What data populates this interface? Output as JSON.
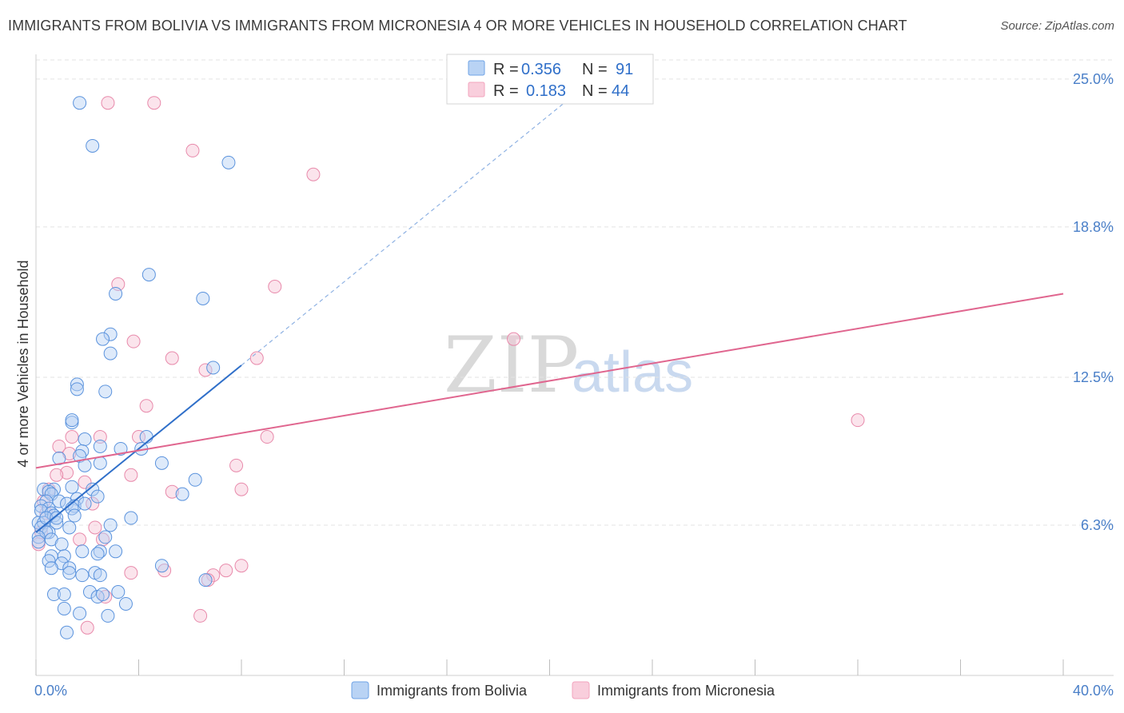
{
  "header": {
    "title": "IMMIGRANTS FROM BOLIVIA VS IMMIGRANTS FROM MICRONESIA 4 OR MORE VEHICLES IN HOUSEHOLD CORRELATION CHART",
    "source": "Source: ZipAtlas.com"
  },
  "watermark": {
    "zip": "ZIP",
    "atlas": "atlas"
  },
  "legend": {
    "r_label": "R =",
    "n_label": "N =",
    "bolivia_r": "0.356",
    "bolivia_n": "91",
    "micronesia_r": "0.183",
    "micronesia_n": "44"
  },
  "chart_data": {
    "type": "scatter",
    "title": "IMMIGRANTS FROM BOLIVIA VS IMMIGRANTS FROM MICRONESIA 4 OR MORE VEHICLES IN HOUSEHOLD CORRELATION CHART",
    "xlabel": "",
    "ylabel": "4 or more Vehicles in Household",
    "xlim": [
      0,
      40
    ],
    "ylim": [
      0,
      25.8
    ],
    "x_tick_labels": [
      "0.0%",
      "40.0%"
    ],
    "y_ticks": [
      6.3,
      12.5,
      18.8,
      25.0
    ],
    "y_tick_labels": [
      "6.3%",
      "12.5%",
      "18.8%",
      "25.0%"
    ],
    "grid": true,
    "legend_position": "top-center",
    "series": [
      {
        "name": "Immigrants from Bolivia",
        "color": "#6fa3e6",
        "r": 0.356,
        "n": 91,
        "trend": {
          "x0": 0.0,
          "y0": 6.0,
          "x1": 8.0,
          "y1": 13.0,
          "dashed_to_x": 21.0
        },
        "points": [
          [
            1.7,
            24.0
          ],
          [
            2.2,
            22.2
          ],
          [
            7.5,
            21.5
          ],
          [
            4.4,
            16.8
          ],
          [
            3.1,
            16.0
          ],
          [
            6.5,
            15.8
          ],
          [
            2.9,
            14.3
          ],
          [
            2.6,
            14.1
          ],
          [
            2.9,
            13.5
          ],
          [
            6.9,
            12.9
          ],
          [
            1.6,
            12.2
          ],
          [
            1.6,
            12.0
          ],
          [
            2.7,
            11.9
          ],
          [
            1.4,
            10.6
          ],
          [
            1.4,
            10.7
          ],
          [
            4.3,
            10.0
          ],
          [
            1.9,
            9.9
          ],
          [
            2.5,
            9.6
          ],
          [
            3.3,
            9.5
          ],
          [
            4.1,
            9.5
          ],
          [
            1.8,
            9.4
          ],
          [
            1.7,
            9.2
          ],
          [
            0.9,
            9.1
          ],
          [
            2.5,
            8.9
          ],
          [
            4.9,
            8.9
          ],
          [
            1.9,
            8.8
          ],
          [
            6.2,
            8.2
          ],
          [
            1.4,
            7.9
          ],
          [
            2.2,
            7.8
          ],
          [
            0.3,
            7.8
          ],
          [
            0.7,
            7.8
          ],
          [
            0.5,
            7.7
          ],
          [
            5.7,
            7.6
          ],
          [
            0.6,
            7.6
          ],
          [
            2.4,
            7.5
          ],
          [
            1.6,
            7.4
          ],
          [
            0.9,
            7.3
          ],
          [
            0.4,
            7.3
          ],
          [
            1.2,
            7.2
          ],
          [
            1.5,
            7.1
          ],
          [
            0.2,
            7.1
          ],
          [
            0.5,
            7.0
          ],
          [
            1.4,
            7.0
          ],
          [
            0.2,
            6.9
          ],
          [
            0.6,
            6.8
          ],
          [
            0.7,
            6.7
          ],
          [
            1.5,
            6.7
          ],
          [
            3.7,
            6.6
          ],
          [
            0.1,
            6.4
          ],
          [
            0.3,
            6.4
          ],
          [
            0.8,
            6.4
          ],
          [
            2.9,
            6.3
          ],
          [
            1.3,
            6.2
          ],
          [
            0.2,
            6.2
          ],
          [
            0.5,
            6.0
          ],
          [
            0.4,
            6.0
          ],
          [
            0.1,
            5.8
          ],
          [
            0.6,
            5.7
          ],
          [
            2.7,
            5.8
          ],
          [
            0.1,
            5.6
          ],
          [
            1.0,
            5.5
          ],
          [
            1.8,
            5.2
          ],
          [
            3.1,
            5.2
          ],
          [
            2.5,
            5.2
          ],
          [
            2.4,
            5.1
          ],
          [
            0.6,
            5.0
          ],
          [
            1.1,
            5.0
          ],
          [
            0.5,
            4.8
          ],
          [
            1.0,
            4.7
          ],
          [
            4.9,
            4.6
          ],
          [
            1.3,
            4.5
          ],
          [
            0.6,
            4.5
          ],
          [
            1.3,
            4.3
          ],
          [
            2.3,
            4.3
          ],
          [
            1.8,
            4.2
          ],
          [
            2.5,
            4.2
          ],
          [
            6.6,
            4.0
          ],
          [
            0.7,
            3.4
          ],
          [
            1.1,
            3.4
          ],
          [
            3.2,
            3.5
          ],
          [
            2.1,
            3.5
          ],
          [
            2.4,
            3.3
          ],
          [
            2.6,
            3.4
          ],
          [
            3.5,
            3.0
          ],
          [
            1.1,
            2.8
          ],
          [
            1.7,
            2.6
          ],
          [
            2.8,
            2.5
          ],
          [
            1.2,
            1.8
          ],
          [
            0.4,
            6.6
          ],
          [
            1.9,
            7.2
          ],
          [
            0.8,
            6.6
          ]
        ]
      },
      {
        "name": "Immigrants from Micronesia",
        "color": "#f2a4be",
        "r": 0.183,
        "n": 44,
        "trend": {
          "x0": 0.0,
          "y0": 8.7,
          "x1": 40.0,
          "y1": 16.0
        },
        "points": [
          [
            2.8,
            24.0
          ],
          [
            4.6,
            24.0
          ],
          [
            6.1,
            22.0
          ],
          [
            10.8,
            21.0
          ],
          [
            9.3,
            16.3
          ],
          [
            3.2,
            16.4
          ],
          [
            18.6,
            14.1
          ],
          [
            3.8,
            14.0
          ],
          [
            8.6,
            13.3
          ],
          [
            5.3,
            13.3
          ],
          [
            6.6,
            12.8
          ],
          [
            4.3,
            11.3
          ],
          [
            32.0,
            10.7
          ],
          [
            9.0,
            10.0
          ],
          [
            4.0,
            10.0
          ],
          [
            2.5,
            10.0
          ],
          [
            1.4,
            10.0
          ],
          [
            0.9,
            9.6
          ],
          [
            1.3,
            9.3
          ],
          [
            7.8,
            8.8
          ],
          [
            1.2,
            8.5
          ],
          [
            0.8,
            8.4
          ],
          [
            3.7,
            8.4
          ],
          [
            1.9,
            8.1
          ],
          [
            8.0,
            7.8
          ],
          [
            5.3,
            7.7
          ],
          [
            0.5,
            7.8
          ],
          [
            2.2,
            7.2
          ],
          [
            0.3,
            7.3
          ],
          [
            0.4,
            6.8
          ],
          [
            2.3,
            6.2
          ],
          [
            0.2,
            6.0
          ],
          [
            1.7,
            5.7
          ],
          [
            2.6,
            5.7
          ],
          [
            0.1,
            5.5
          ],
          [
            8.0,
            4.6
          ],
          [
            7.4,
            4.4
          ],
          [
            5.0,
            4.4
          ],
          [
            3.7,
            4.3
          ],
          [
            6.9,
            4.2
          ],
          [
            6.7,
            4.0
          ],
          [
            2.7,
            3.3
          ],
          [
            6.4,
            2.5
          ],
          [
            2.0,
            2.0
          ]
        ]
      }
    ]
  }
}
